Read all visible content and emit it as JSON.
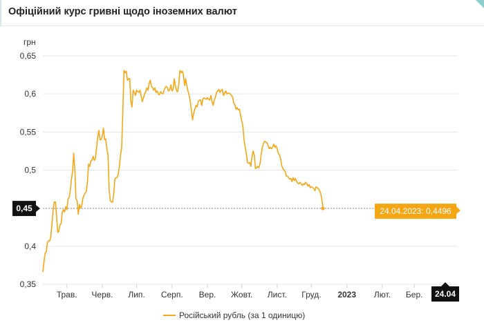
{
  "header": {
    "title": "Офіційний курс гривні щодо іноземних валют"
  },
  "colors": {
    "line": "#f4a615",
    "grid": "#e6e6e6",
    "badge": "#111111",
    "tooltip": "#f4a615"
  },
  "chart_data": {
    "type": "line",
    "ylabel": "грн",
    "ylim": [
      0.35,
      0.65
    ],
    "yticks": [
      "0,65",
      "0,6",
      "0,55",
      "0,5",
      "0,45",
      "0,4",
      "0,35"
    ],
    "ytick_values": [
      0.65,
      0.6,
      0.55,
      0.5,
      0.45,
      0.4,
      0.35
    ],
    "xlim": [
      0,
      363
    ],
    "xticks": [
      {
        "pos": 21,
        "label": "Трав."
      },
      {
        "pos": 52,
        "label": "Черв."
      },
      {
        "pos": 82,
        "label": "Лип."
      },
      {
        "pos": 113,
        "label": "Серп."
      },
      {
        "pos": 144,
        "label": "Вер."
      },
      {
        "pos": 174,
        "label": "Жовт."
      },
      {
        "pos": 205,
        "label": "Лист."
      },
      {
        "pos": 235,
        "label": "Груд."
      },
      {
        "pos": 266,
        "label": "2023",
        "bold": true
      },
      {
        "pos": 297,
        "label": "Лют."
      },
      {
        "pos": 325,
        "label": "Бер."
      }
    ],
    "current": {
      "label": "0,45",
      "date_label": "24.04",
      "tooltip": "24.04.2023: 0,4496",
      "value": 0.4496
    },
    "legend": "Російський рубль (за 1 одиницю)",
    "series": [
      {
        "name": "Російський рубль (за 1 одиницю)",
        "points": [
          [
            0,
            0.366
          ],
          [
            1,
            0.38
          ],
          [
            2,
            0.391
          ],
          [
            3,
            0.393
          ],
          [
            4,
            0.405
          ],
          [
            5,
            0.407
          ],
          [
            6,
            0.407
          ],
          [
            7,
            0.413
          ],
          [
            8,
            0.43
          ],
          [
            9,
            0.448
          ],
          [
            10,
            0.458
          ],
          [
            11,
            0.458
          ],
          [
            12,
            0.44
          ],
          [
            13,
            0.418
          ],
          [
            14,
            0.42
          ],
          [
            15,
            0.428
          ],
          [
            16,
            0.43
          ],
          [
            17,
            0.445
          ],
          [
            18,
            0.448
          ],
          [
            19,
            0.445
          ],
          [
            20,
            0.452
          ],
          [
            21,
            0.448
          ],
          [
            22,
            0.462
          ],
          [
            23,
            0.464
          ],
          [
            24,
            0.473
          ],
          [
            25,
            0.488
          ],
          [
            26,
            0.498
          ],
          [
            27,
            0.522
          ],
          [
            28,
            0.5
          ],
          [
            29,
            0.462
          ],
          [
            30,
            0.46
          ],
          [
            31,
            0.442
          ],
          [
            32,
            0.455
          ],
          [
            33,
            0.45
          ],
          [
            34,
            0.453
          ],
          [
            35,
            0.463
          ],
          [
            36,
            0.467
          ],
          [
            37,
            0.47
          ],
          [
            38,
            0.472
          ],
          [
            39,
            0.485
          ],
          [
            40,
            0.508
          ],
          [
            41,
            0.505
          ],
          [
            42,
            0.512
          ],
          [
            43,
            0.513
          ],
          [
            44,
            0.518
          ],
          [
            45,
            0.513
          ],
          [
            46,
            0.515
          ],
          [
            47,
            0.53
          ],
          [
            48,
            0.543
          ],
          [
            49,
            0.552
          ],
          [
            50,
            0.54
          ],
          [
            51,
            0.54
          ],
          [
            52,
            0.545
          ],
          [
            53,
            0.555
          ],
          [
            54,
            0.54
          ],
          [
            55,
            0.541
          ],
          [
            56,
            0.528
          ],
          [
            57,
            0.52
          ],
          [
            58,
            0.474
          ],
          [
            59,
            0.46
          ],
          [
            60,
            0.458
          ],
          [
            61,
            0.458
          ],
          [
            62,
            0.468
          ],
          [
            63,
            0.488
          ],
          [
            64,
            0.49
          ],
          [
            65,
            0.49
          ],
          [
            66,
            0.495
          ],
          [
            67,
            0.505
          ],
          [
            68,
            0.52
          ],
          [
            69,
            0.53
          ],
          [
            70,
            0.58
          ],
          [
            71,
            0.631
          ],
          [
            72,
            0.628
          ],
          [
            73,
            0.63
          ],
          [
            74,
            0.618
          ],
          [
            75,
            0.62
          ],
          [
            76,
            0.62
          ],
          [
            77,
            0.59
          ],
          [
            78,
            0.583
          ],
          [
            79,
            0.605
          ],
          [
            80,
            0.602
          ],
          [
            81,
            0.598
          ],
          [
            82,
            0.605
          ],
          [
            83,
            0.603
          ],
          [
            84,
            0.602
          ],
          [
            85,
            0.605
          ],
          [
            86,
            0.598
          ],
          [
            87,
            0.59
          ],
          [
            88,
            0.595
          ],
          [
            89,
            0.6
          ],
          [
            90,
            0.603
          ],
          [
            91,
            0.608
          ],
          [
            92,
            0.605
          ],
          [
            93,
            0.614
          ],
          [
            94,
            0.618
          ],
          [
            95,
            0.61
          ],
          [
            96,
            0.608
          ],
          [
            97,
            0.605
          ],
          [
            98,
            0.608
          ],
          [
            99,
            0.602
          ],
          [
            100,
            0.604
          ],
          [
            101,
            0.6
          ],
          [
            102,
            0.599
          ],
          [
            103,
            0.603
          ],
          [
            104,
            0.601
          ],
          [
            105,
            0.6
          ],
          [
            106,
            0.605
          ],
          [
            107,
            0.608
          ],
          [
            108,
            0.61
          ],
          [
            109,
            0.608
          ],
          [
            110,
            0.604
          ],
          [
            111,
            0.605
          ],
          [
            112,
            0.612
          ],
          [
            113,
            0.604
          ],
          [
            114,
            0.606
          ],
          [
            115,
            0.62
          ],
          [
            116,
            0.611
          ],
          [
            117,
            0.604
          ],
          [
            118,
            0.603
          ],
          [
            119,
            0.614
          ],
          [
            120,
            0.631
          ],
          [
            121,
            0.628
          ],
          [
            122,
            0.63
          ],
          [
            123,
            0.625
          ],
          [
            124,
            0.611
          ],
          [
            125,
            0.62
          ],
          [
            126,
            0.61
          ],
          [
            127,
            0.604
          ],
          [
            128,
            0.598
          ],
          [
            129,
            0.59
          ],
          [
            130,
            0.578
          ],
          [
            131,
            0.566
          ],
          [
            132,
            0.575
          ],
          [
            133,
            0.58
          ],
          [
            134,
            0.585
          ],
          [
            135,
            0.583
          ],
          [
            136,
            0.59
          ],
          [
            137,
            0.592
          ],
          [
            138,
            0.592
          ],
          [
            139,
            0.585
          ],
          [
            140,
            0.593
          ],
          [
            141,
            0.595
          ],
          [
            142,
            0.594
          ],
          [
            143,
            0.593
          ],
          [
            144,
            0.595
          ],
          [
            145,
            0.593
          ],
          [
            146,
            0.592
          ],
          [
            147,
            0.598
          ],
          [
            148,
            0.59
          ],
          [
            149,
            0.585
          ],
          [
            150,
            0.592
          ],
          [
            151,
            0.596
          ],
          [
            152,
            0.602
          ],
          [
            153,
            0.604
          ],
          [
            154,
            0.606
          ],
          [
            155,
            0.602
          ],
          [
            156,
            0.605
          ],
          [
            157,
            0.606
          ],
          [
            158,
            0.598
          ],
          [
            159,
            0.601
          ],
          [
            160,
            0.604
          ],
          [
            161,
            0.6
          ],
          [
            162,
            0.601
          ],
          [
            163,
            0.601
          ],
          [
            164,
            0.6
          ],
          [
            165,
            0.598
          ],
          [
            166,
            0.596
          ],
          [
            167,
            0.588
          ],
          [
            168,
            0.586
          ],
          [
            169,
            0.58
          ],
          [
            170,
            0.582
          ],
          [
            171,
            0.579
          ],
          [
            172,
            0.58
          ],
          [
            173,
            0.572
          ],
          [
            174,
            0.565
          ],
          [
            175,
            0.558
          ],
          [
            176,
            0.54
          ],
          [
            177,
            0.53
          ],
          [
            178,
            0.522
          ],
          [
            179,
            0.51
          ],
          [
            180,
            0.509
          ],
          [
            181,
            0.51
          ],
          [
            182,
            0.505
          ],
          [
            183,
            0.518
          ],
          [
            184,
            0.525
          ],
          [
            185,
            0.52
          ],
          [
            186,
            0.502
          ],
          [
            187,
            0.503
          ],
          [
            188,
            0.505
          ],
          [
            189,
            0.503
          ],
          [
            190,
            0.508
          ],
          [
            191,
            0.52
          ],
          [
            192,
            0.53
          ],
          [
            193,
            0.535
          ],
          [
            194,
            0.538
          ],
          [
            195,
            0.537
          ],
          [
            196,
            0.536
          ],
          [
            197,
            0.533
          ],
          [
            198,
            0.528
          ],
          [
            199,
            0.53
          ],
          [
            200,
            0.528
          ],
          [
            201,
            0.53
          ],
          [
            202,
            0.534
          ],
          [
            203,
            0.53
          ],
          [
            204,
            0.532
          ],
          [
            205,
            0.528
          ],
          [
            206,
            0.522
          ],
          [
            207,
            0.52
          ],
          [
            208,
            0.515
          ],
          [
            209,
            0.506
          ],
          [
            210,
            0.502
          ],
          [
            211,
            0.5
          ],
          [
            212,
            0.498
          ],
          [
            213,
            0.492
          ],
          [
            214,
            0.492
          ],
          [
            215,
            0.49
          ],
          [
            216,
            0.488
          ],
          [
            217,
            0.489
          ],
          [
            218,
            0.485
          ],
          [
            219,
            0.49
          ],
          [
            220,
            0.486
          ],
          [
            221,
            0.489
          ],
          [
            222,
            0.485
          ],
          [
            223,
            0.483
          ],
          [
            224,
            0.482
          ],
          [
            225,
            0.484
          ],
          [
            226,
            0.482
          ],
          [
            227,
            0.48
          ],
          [
            228,
            0.482
          ],
          [
            229,
            0.481
          ],
          [
            230,
            0.484
          ],
          [
            231,
            0.482
          ],
          [
            232,
            0.479
          ],
          [
            233,
            0.481
          ],
          [
            234,
            0.477
          ],
          [
            235,
            0.478
          ],
          [
            236,
            0.477
          ],
          [
            237,
            0.476
          ],
          [
            238,
            0.473
          ],
          [
            239,
            0.478
          ],
          [
            240,
            0.477
          ],
          [
            241,
            0.476
          ],
          [
            242,
            0.473
          ],
          [
            243,
            0.47
          ],
          [
            244,
            0.462
          ],
          [
            245,
            0.452
          ]
        ]
      }
    ]
  }
}
